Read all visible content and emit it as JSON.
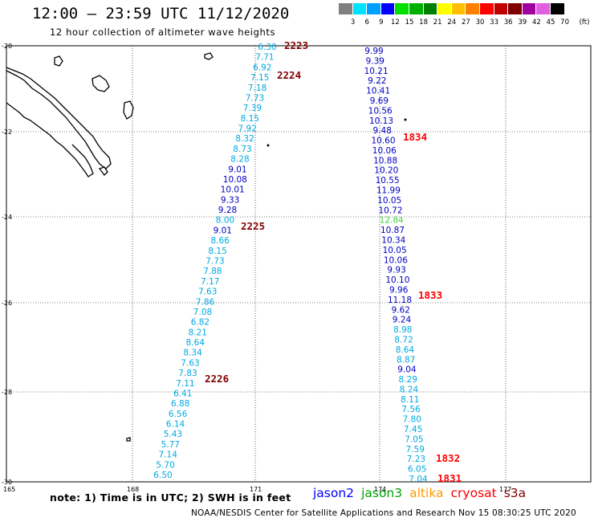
{
  "title": "12:00 – 23:59 UTC 11/12/2020",
  "subtitle": "12 hour collection of altimeter wave heights",
  "legend": {
    "unit": "(ft)",
    "colors": [
      "#808080",
      "#00e0ff",
      "#00a0ff",
      "#0000ff",
      "#00e000",
      "#00b000",
      "#008000",
      "#ffff00",
      "#ffc000",
      "#ff8000",
      "#ff0000",
      "#c00000",
      "#800000",
      "#a000a0",
      "#e060e0",
      "#000000"
    ],
    "labels": [
      "3",
      "6",
      "9",
      "12",
      "15",
      "18",
      "21",
      "24",
      "27",
      "30",
      "33",
      "36",
      "39",
      "42",
      "45",
      "70"
    ]
  },
  "axes": {
    "lat_labels": [
      "-20",
      "-22",
      "-24",
      "-26",
      "-28",
      "-30"
    ],
    "lon_labels": [
      "165",
      "168",
      "171",
      "174",
      "177"
    ]
  },
  "tracks": {
    "west": {
      "values": [
        "6.30",
        "7.71",
        "6.92",
        "7.15",
        "7.18",
        "7.73",
        "7.39",
        "8.15",
        "7.92",
        "8.32",
        "8.73",
        "8.28",
        "9.01",
        "10.08",
        "10.01",
        "9.33",
        "9.28",
        "8.00",
        "9.01",
        "8.66",
        "8.15",
        "7.73",
        "7.88",
        "7.17",
        "7.63",
        "7.86",
        "7.08",
        "6.82",
        "8.21",
        "8.64",
        "8.34",
        "7.63",
        "7.83",
        "7.11",
        "6.41",
        "6.88",
        "6.56",
        "6.14",
        "5.43",
        "5.77",
        "7.14",
        "5.70",
        "6.50"
      ],
      "times": [
        "2223",
        "2224",
        "2225",
        "2226"
      ]
    },
    "east": {
      "values": [
        "9.99",
        "9.39",
        "10.21",
        "9.22",
        "10.41",
        "9.69",
        "10.56",
        "10.13",
        "9.48",
        "10.60",
        "10.06",
        "10.88",
        "10.20",
        "10.55",
        "11.99",
        "10.05",
        "10.72",
        "12.84",
        "10.87",
        "10.34",
        "10.05",
        "10.06",
        "9.93",
        "10.10",
        "9.96",
        "11.18",
        "9.62",
        "9.24",
        "8.98",
        "8.72",
        "8.64",
        "8.87",
        "9.04",
        "8.29",
        "8.24",
        "8.11",
        "7.56",
        "7.80",
        "7.45",
        "7.05",
        "7.59",
        "7.23",
        "6.05",
        "7.04"
      ],
      "times": [
        "1834",
        "1833",
        "1832",
        "1831"
      ]
    }
  },
  "note": "note: 1) Time is in UTC; 2) SWH is in feet",
  "satellites": [
    {
      "name": "jason2",
      "color": "#0000ff"
    },
    {
      "name": "jason3",
      "color": "#00a000"
    },
    {
      "name": "altika",
      "color": "#ff9900"
    },
    {
      "name": "cryosat",
      "color": "#ff0000"
    },
    {
      "name": "s3a",
      "color": "#800000"
    }
  ],
  "credit": "NOAA/NESDIS Center for Satellite Applications and Research     Nov 15 08:30:25 UTC 2020"
}
